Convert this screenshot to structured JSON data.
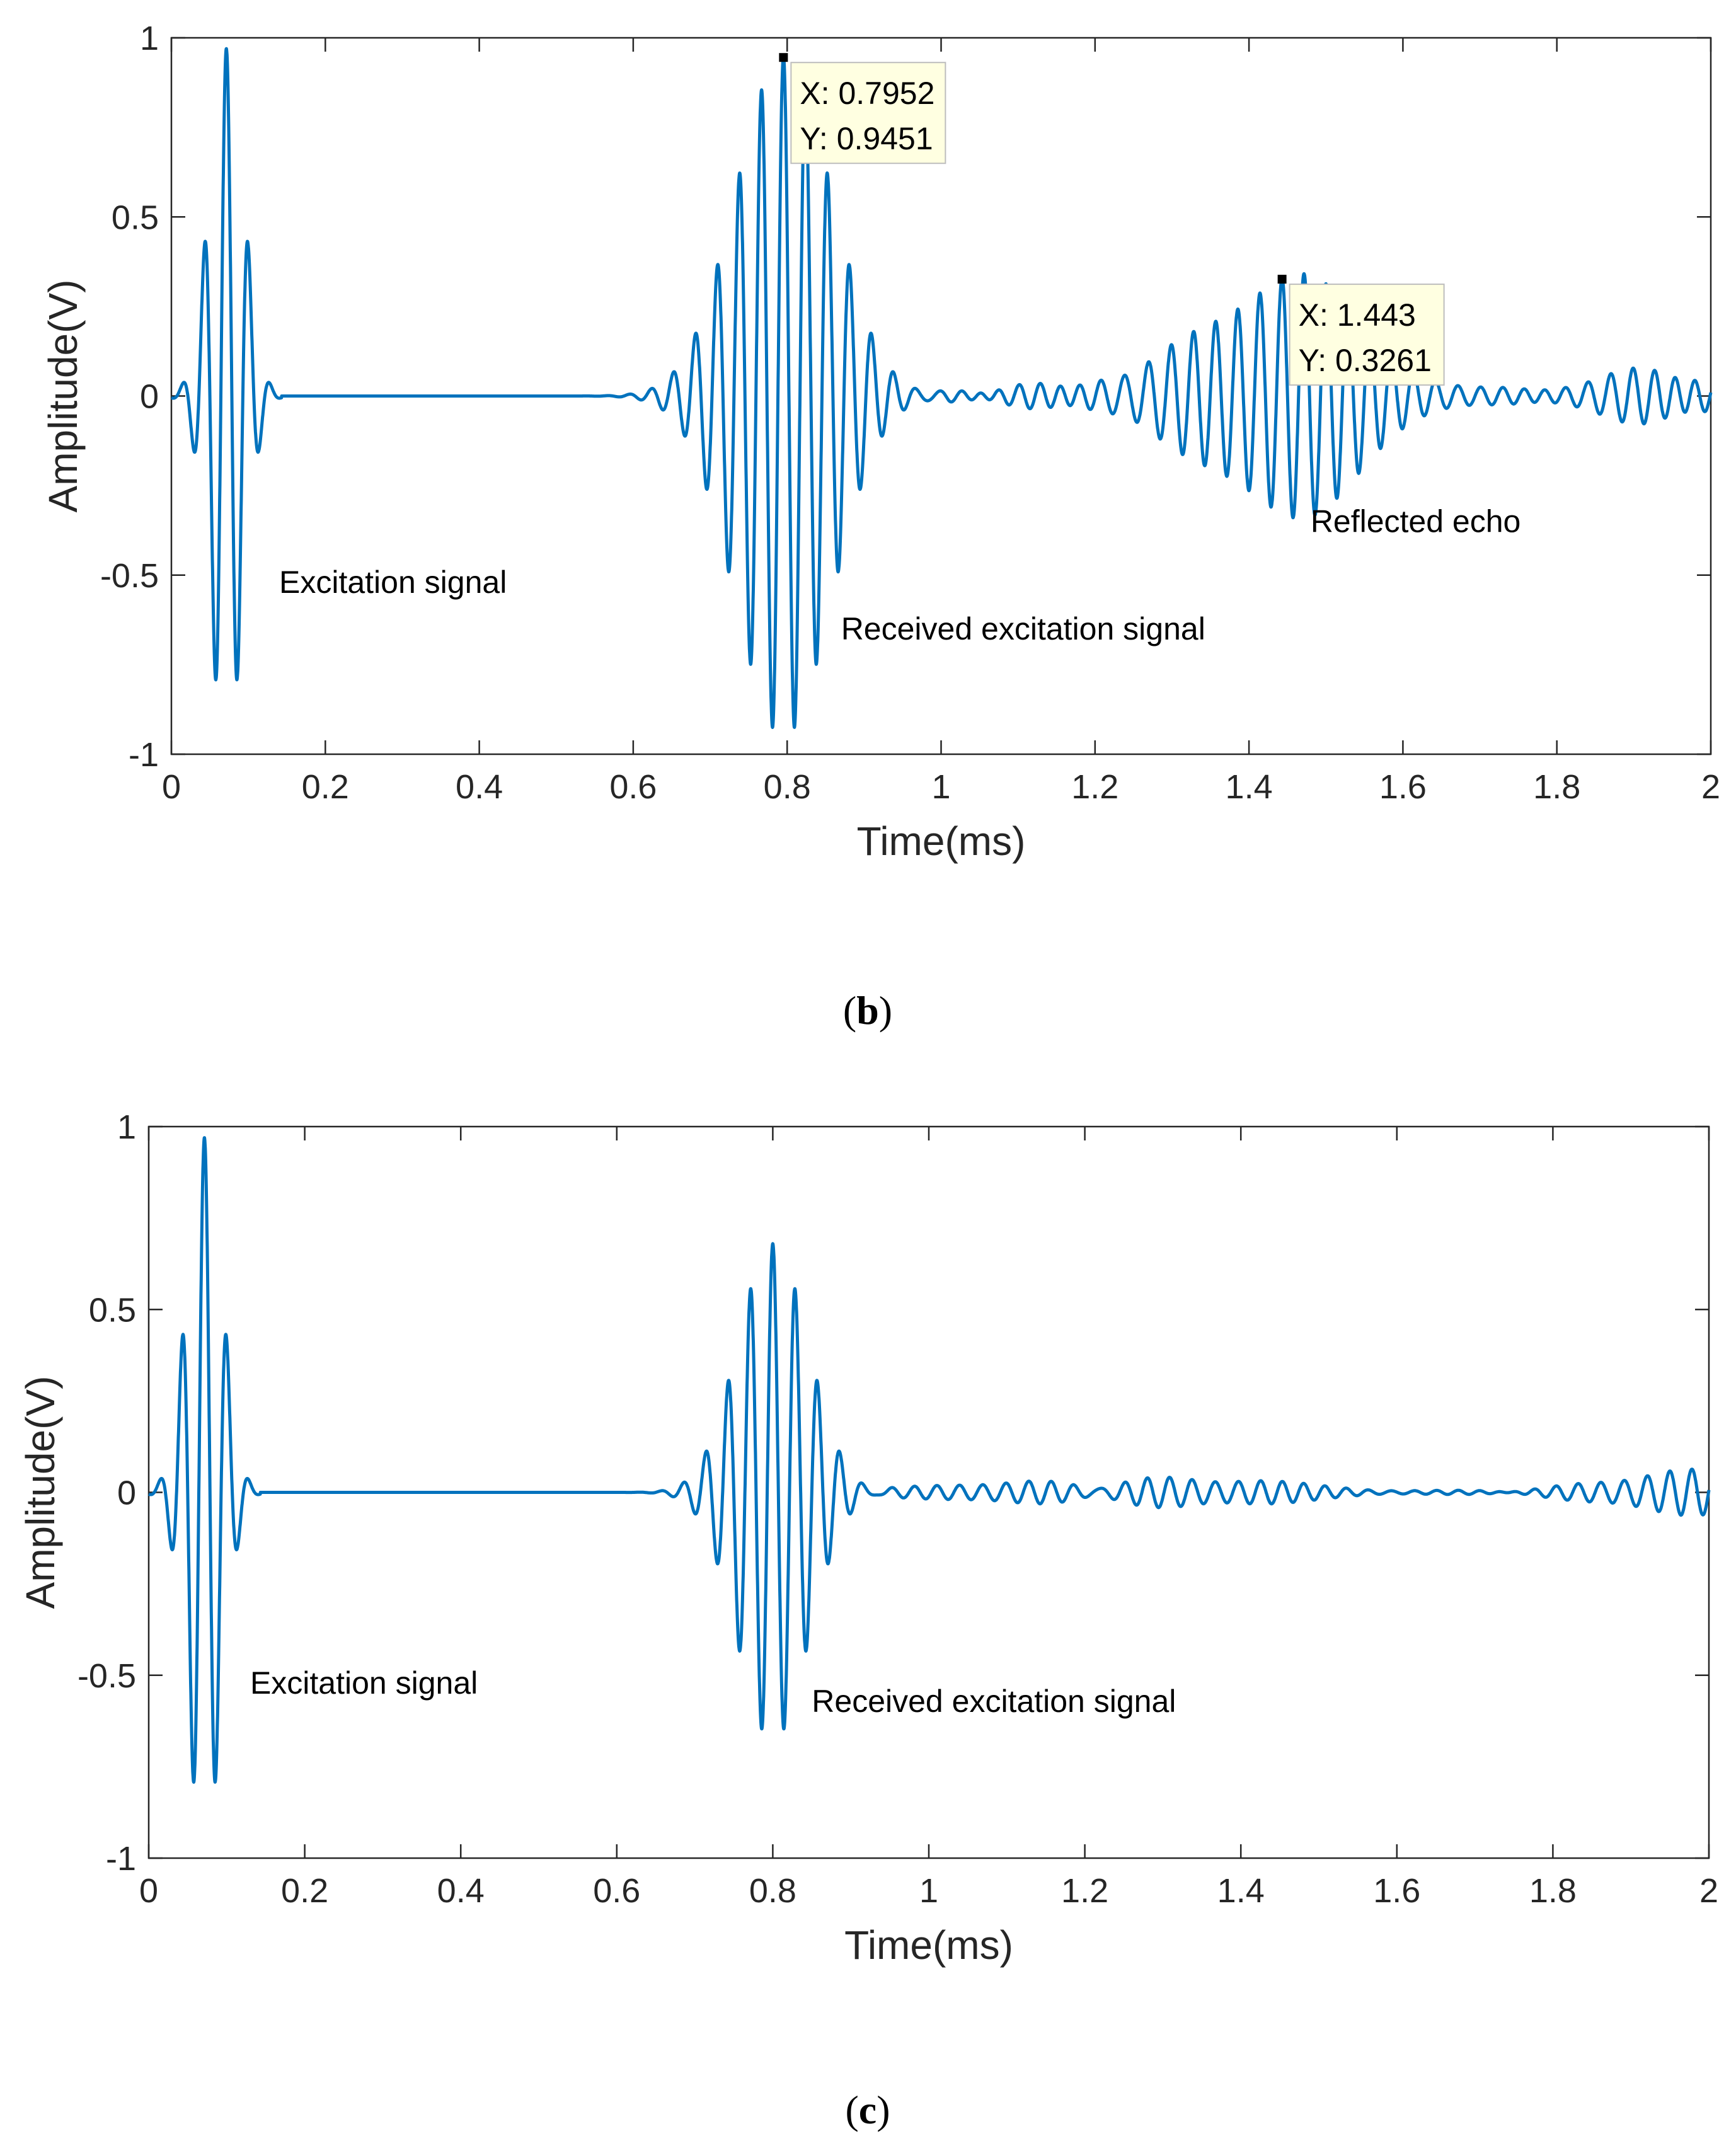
{
  "chart_data": [
    {
      "type": "line",
      "panel_label": "b",
      "xlabel": "Time(ms)",
      "ylabel": "Amplitude(V)",
      "xlim": [
        0,
        2
      ],
      "ylim": [
        -1,
        1
      ],
      "xticks": [
        0,
        0.2,
        0.4,
        0.6,
        0.8,
        1,
        1.2,
        1.4,
        1.6,
        1.8,
        2
      ],
      "xtick_labels": [
        "0",
        "0.2",
        "0.4",
        "0.6",
        "0.8",
        "1",
        "1.2",
        "1.4",
        "1.6",
        "1.8",
        "2"
      ],
      "yticks": [
        1,
        0.5,
        0,
        -0.5,
        -1
      ],
      "ytick_labels": [
        "1",
        "0.5",
        "0",
        "-0.5",
        "-1"
      ],
      "grid": false,
      "line_color": "#0072BD",
      "series": [
        {
          "name": "signal",
          "tone_frequency_khz": 35,
          "bursts": [
            {
              "center_ms": 0.0714,
              "amplitude": 0.97,
              "sigma_ms": 0.022,
              "end_ms": 0.143
            },
            {
              "center_ms": 0.7952,
              "amplitude": 0.95,
              "sigma_ms": 0.062
            },
            {
              "center_ms": 1.443,
              "amplitude": 0.33,
              "sigma_ms": 0.1
            }
          ],
          "residual_start_ms": 0.96,
          "residual_amplitude": 0.06
        }
      ],
      "annotations": [
        {
          "text": "Excitation signal",
          "x": 0.14,
          "y": -0.55
        },
        {
          "text": "Received excitation signal",
          "x": 0.87,
          "y": -0.68
        },
        {
          "text": "Reflected echo",
          "x": 1.48,
          "y": -0.38
        }
      ],
      "datatips": [
        {
          "x": 0.7952,
          "y": 0.9451,
          "x_text": "X: 0.7952",
          "y_text": "Y: 0.9451"
        },
        {
          "x": 1.443,
          "y": 0.3261,
          "x_text": "X: 1.443",
          "y_text": "Y: 0.3261"
        }
      ]
    },
    {
      "type": "line",
      "panel_label": "c",
      "xlabel": "Time(ms)",
      "ylabel": "Amplitude(V)",
      "xlim": [
        0,
        2
      ],
      "ylim": [
        -1,
        1
      ],
      "xticks": [
        0,
        0.2,
        0.4,
        0.6,
        0.8,
        1,
        1.2,
        1.4,
        1.6,
        1.8,
        2
      ],
      "xtick_labels": [
        "0",
        "0.2",
        "0.4",
        "0.6",
        "0.8",
        "1",
        "1.2",
        "1.4",
        "1.6",
        "1.8",
        "2"
      ],
      "yticks": [
        1,
        0.5,
        0,
        -0.5,
        -1
      ],
      "ytick_labels": [
        "1",
        "0.5",
        "0",
        "-0.5",
        "-1"
      ],
      "grid": false,
      "line_color": "#0072BD",
      "series": [
        {
          "name": "signal",
          "tone_frequency_khz": 35,
          "bursts": [
            {
              "center_ms": 0.0714,
              "amplitude": 0.97,
              "sigma_ms": 0.022,
              "end_ms": 0.143
            },
            {
              "center_ms": 0.8,
              "amplitude": 0.68,
              "sigma_ms": 0.045
            }
          ],
          "residual_start_ms": 0.9,
          "residual_amplitude": 0.05
        }
      ],
      "annotations": [
        {
          "text": "Excitation signal",
          "x": 0.13,
          "y": -0.55
        },
        {
          "text": "Received excitation signal",
          "x": 0.85,
          "y": -0.6
        }
      ],
      "datatips": []
    }
  ]
}
